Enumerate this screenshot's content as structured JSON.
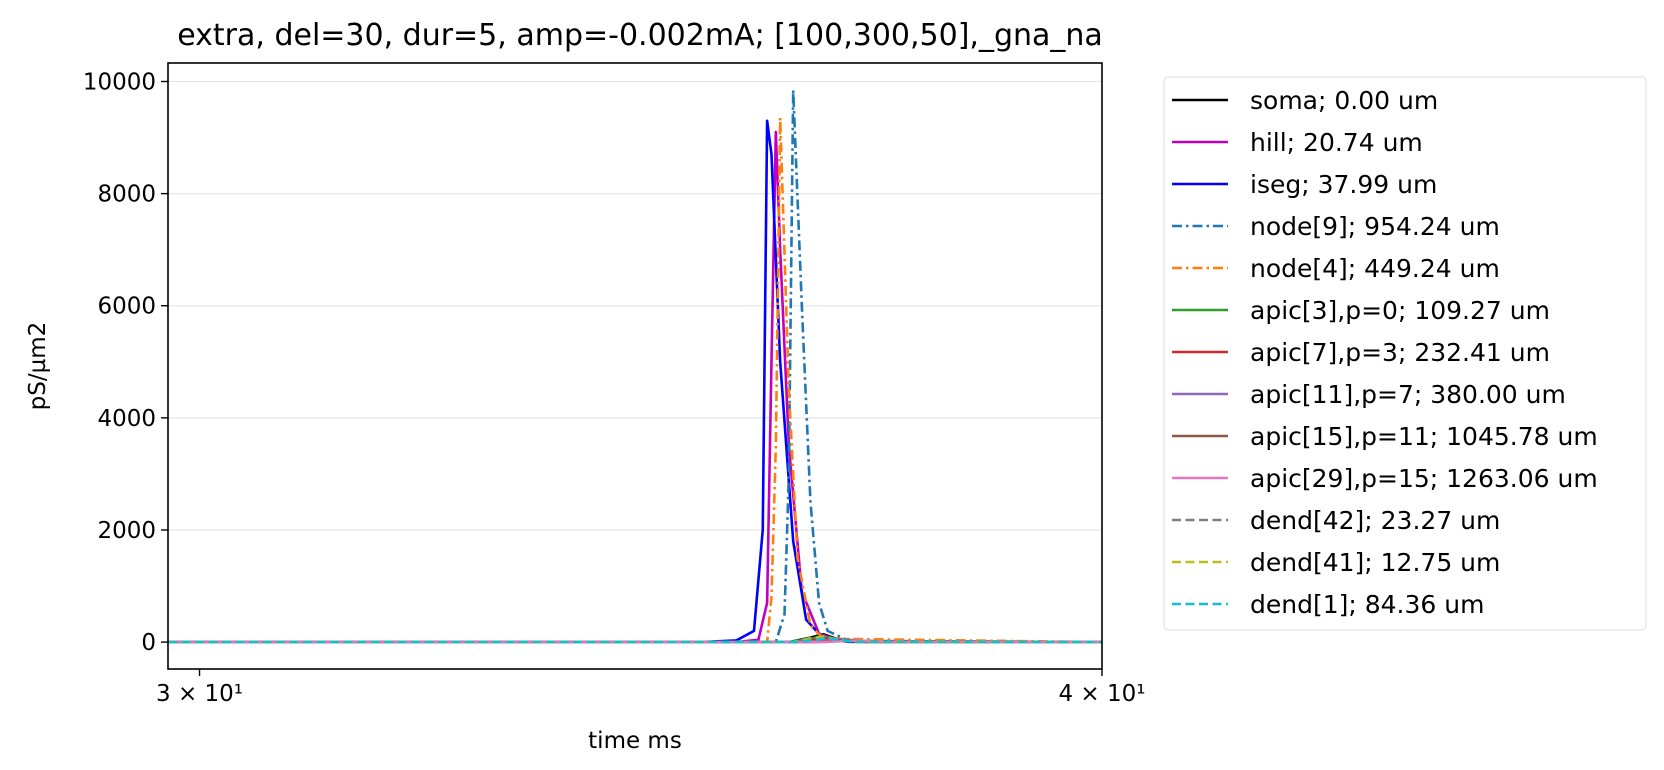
{
  "chart_data": {
    "type": "line",
    "title": "extra, del=30, dur=5, amp=-0.002mA; [100,300,50],_gna_na",
    "xlabel": "time ms",
    "ylabel": "pS/µm2",
    "xscale": "log",
    "xlim": [
      29.7,
      40
    ],
    "ylim": [
      -480,
      10330
    ],
    "x_ticks": [
      {
        "value": 30,
        "label": "3 × 10¹"
      },
      {
        "value": 40,
        "label": "4 × 10¹"
      }
    ],
    "y_ticks": [
      0,
      2000,
      4000,
      6000,
      8000,
      10000
    ],
    "grid": "horizontal",
    "legend_position": "outside-right",
    "series": [
      {
        "name": "soma; 0.00 um",
        "color": "#000000",
        "dash": "solid",
        "points": [
          [
            29.7,
            0
          ],
          [
            36.2,
            0
          ],
          [
            36.45,
            80
          ],
          [
            36.6,
            140
          ],
          [
            36.75,
            60
          ],
          [
            37.0,
            5
          ],
          [
            40,
            0
          ]
        ]
      },
      {
        "name": "hill; 20.74 um",
        "color": "#bf00bf",
        "dash": "solid",
        "points": [
          [
            29.7,
            0
          ],
          [
            35.6,
            0
          ],
          [
            35.85,
            40
          ],
          [
            35.95,
            700
          ],
          [
            36.0,
            5000
          ],
          [
            36.05,
            9100
          ],
          [
            36.1,
            7000
          ],
          [
            36.2,
            3500
          ],
          [
            36.35,
            900
          ],
          [
            36.55,
            150
          ],
          [
            36.8,
            20
          ],
          [
            40,
            0
          ]
        ]
      },
      {
        "name": "iseg; 37.99 um",
        "color": "#0000ff",
        "dash": "solid",
        "points": [
          [
            29.7,
            0
          ],
          [
            35.2,
            0
          ],
          [
            35.6,
            30
          ],
          [
            35.8,
            200
          ],
          [
            35.9,
            2000
          ],
          [
            35.95,
            9300
          ],
          [
            36.0,
            8700
          ],
          [
            36.1,
            5000
          ],
          [
            36.25,
            1800
          ],
          [
            36.4,
            400
          ],
          [
            36.6,
            60
          ],
          [
            36.9,
            5
          ],
          [
            40,
            0
          ]
        ]
      },
      {
        "name": "node[9]; 954.24 um",
        "color": "#1f77b4",
        "dash": "dashdot",
        "points": [
          [
            29.7,
            0
          ],
          [
            36.05,
            0
          ],
          [
            36.15,
            500
          ],
          [
            36.2,
            3000
          ],
          [
            36.25,
            9850
          ],
          [
            36.35,
            6000
          ],
          [
            36.45,
            2500
          ],
          [
            36.55,
            700
          ],
          [
            36.65,
            200
          ],
          [
            36.9,
            20
          ],
          [
            40,
            0
          ]
        ]
      },
      {
        "name": "node[4]; 449.24 um",
        "color": "#ff7f0e",
        "dash": "dashdot",
        "points": [
          [
            29.7,
            0
          ],
          [
            35.95,
            0
          ],
          [
            36.0,
            800
          ],
          [
            36.05,
            3500
          ],
          [
            36.1,
            9350
          ],
          [
            36.2,
            4500
          ],
          [
            36.3,
            1500
          ],
          [
            36.45,
            300
          ],
          [
            36.6,
            60
          ],
          [
            40,
            0
          ]
        ]
      },
      {
        "name": "apic[3],p=0; 109.27 um",
        "color": "#2ca02c",
        "dash": "solid",
        "points": [
          [
            29.7,
            0
          ],
          [
            36.2,
            0
          ],
          [
            36.45,
            60
          ],
          [
            36.6,
            100
          ],
          [
            36.8,
            40
          ],
          [
            37.0,
            5
          ],
          [
            40,
            0
          ]
        ]
      },
      {
        "name": "apic[7],p=3; 232.41 um",
        "color": "#d62728",
        "dash": "solid",
        "points": [
          [
            29.7,
            0
          ],
          [
            36.3,
            0
          ],
          [
            36.5,
            40
          ],
          [
            36.7,
            70
          ],
          [
            36.9,
            30
          ],
          [
            37.1,
            5
          ],
          [
            40,
            0
          ]
        ]
      },
      {
        "name": "apic[11],p=7; 380.00 um",
        "color": "#9467bd",
        "dash": "solid",
        "points": [
          [
            29.7,
            0
          ],
          [
            36.4,
            0
          ],
          [
            36.6,
            30
          ],
          [
            36.8,
            50
          ],
          [
            37.0,
            20
          ],
          [
            37.2,
            3
          ],
          [
            40,
            0
          ]
        ]
      },
      {
        "name": "apic[15],p=11; 1045.78 um",
        "color": "#8c564b",
        "dash": "solid",
        "points": [
          [
            29.7,
            0
          ],
          [
            36.5,
            0
          ],
          [
            36.7,
            20
          ],
          [
            36.9,
            40
          ],
          [
            37.1,
            15
          ],
          [
            37.3,
            2
          ],
          [
            40,
            0
          ]
        ]
      },
      {
        "name": "apic[29],p=15; 1263.06 um",
        "color": "#e377c2",
        "dash": "solid",
        "points": [
          [
            29.7,
            0
          ],
          [
            36.6,
            0
          ],
          [
            36.8,
            15
          ],
          [
            37.0,
            30
          ],
          [
            37.2,
            10
          ],
          [
            37.4,
            2
          ],
          [
            40,
            0
          ]
        ]
      },
      {
        "name": "dend[42]; 23.27 um",
        "color": "#7f7f7f",
        "dash": "dashed",
        "points": [
          [
            29.7,
            0
          ],
          [
            36.25,
            0
          ],
          [
            36.45,
            60
          ],
          [
            36.6,
            90
          ],
          [
            36.8,
            30
          ],
          [
            37.0,
            3
          ],
          [
            40,
            0
          ]
        ]
      },
      {
        "name": "dend[41]; 12.75 um",
        "color": "#bcbd22",
        "dash": "dashed",
        "points": [
          [
            29.7,
            0
          ],
          [
            36.25,
            0
          ],
          [
            36.45,
            70
          ],
          [
            36.6,
            100
          ],
          [
            36.8,
            35
          ],
          [
            37.0,
            3
          ],
          [
            40,
            0
          ]
        ]
      },
      {
        "name": "dend[1]; 84.36 um",
        "color": "#17becf",
        "dash": "dashed",
        "points": [
          [
            29.7,
            0
          ],
          [
            36.3,
            0
          ],
          [
            36.5,
            40
          ],
          [
            36.65,
            70
          ],
          [
            36.85,
            25
          ],
          [
            37.05,
            3
          ],
          [
            40,
            0
          ]
        ]
      }
    ]
  }
}
